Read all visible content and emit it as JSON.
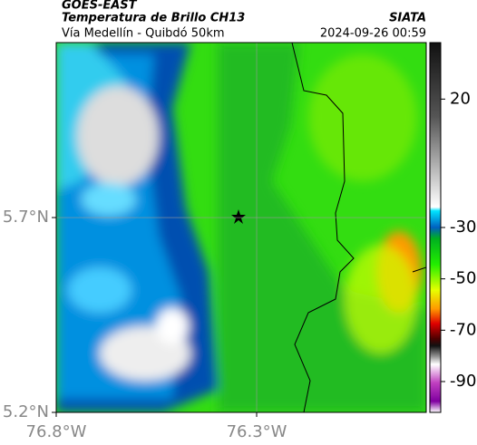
{
  "header": {
    "network": "GOES-EAST",
    "title": "Temperatura de Brillo CH13",
    "subtitle": "Vía Medellín - Quibdó 50km",
    "source": "SIATA",
    "timestamp": "2024-09-26 00:59"
  },
  "map": {
    "xlim": [
      -76.8,
      -75.877
    ],
    "ylim": [
      5.2,
      6.149
    ],
    "xticks": [
      {
        "value": -76.8,
        "label": "76.8°W"
      },
      {
        "value": -76.3,
        "label": "76.3°W"
      }
    ],
    "yticks": [
      {
        "value": 5.2,
        "label": "5.2°N"
      },
      {
        "value": 5.7,
        "label": "5.7°N"
      }
    ]
  },
  "colorbar": {
    "lim": [
      -102,
      42
    ],
    "ticks": [
      20,
      -30,
      -50,
      -70,
      -90
    ]
  }
}
